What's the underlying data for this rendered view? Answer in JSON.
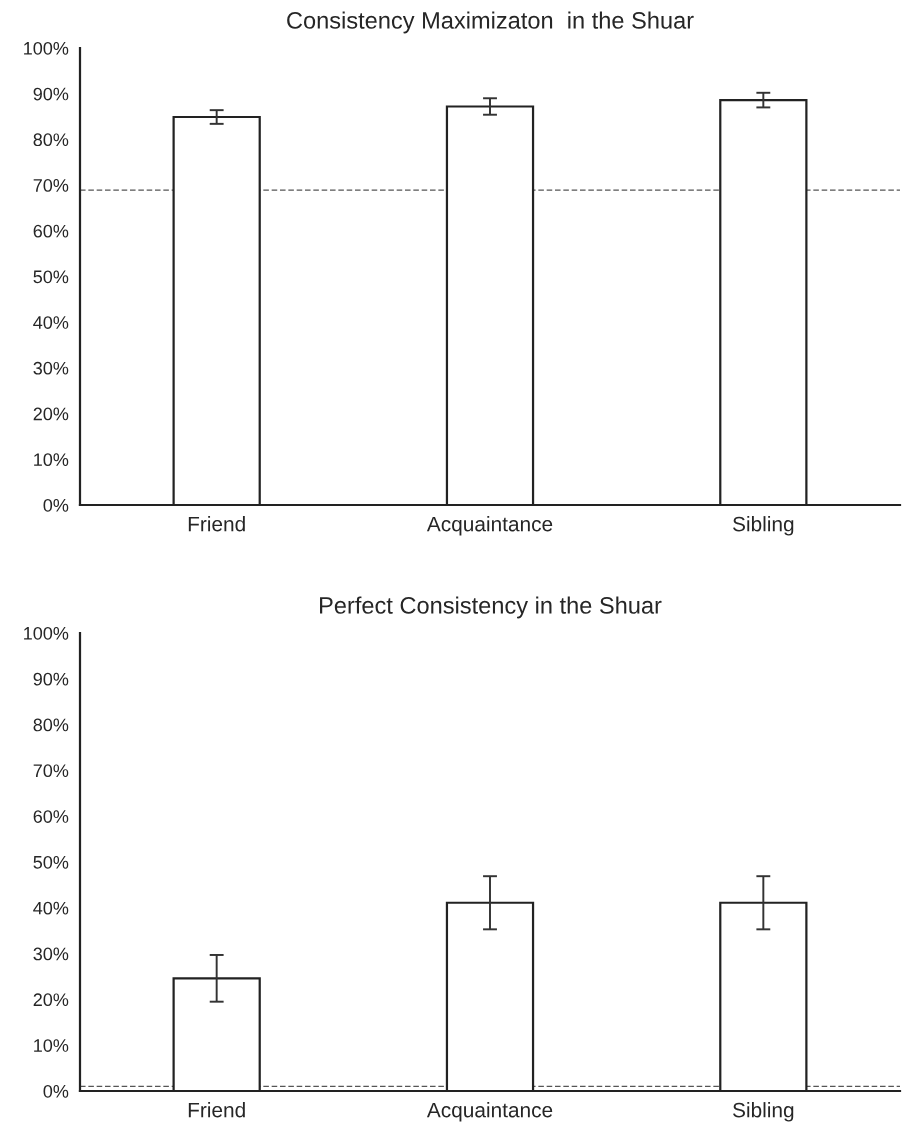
{
  "chart_data": [
    {
      "type": "bar",
      "title": "Consistency Maximizaton  in the Shuar",
      "categories": [
        "Friend",
        "Acquaintance",
        "Sibling"
      ],
      "values": [
        84.9,
        87.2,
        88.6
      ],
      "errors": [
        1.5,
        1.8,
        1.6
      ],
      "color": "#ffffff",
      "ylim": [
        0,
        100
      ],
      "yticks": [
        {
          "value": 0,
          "label": "0%"
        },
        {
          "value": 10,
          "label": "10%"
        },
        {
          "value": 20,
          "label": "20%"
        },
        {
          "value": 30,
          "label": "30%"
        },
        {
          "value": 40,
          "label": "40%"
        },
        {
          "value": 50,
          "label": "50%"
        },
        {
          "value": 60,
          "label": "60%"
        },
        {
          "value": 70,
          "label": "70%"
        },
        {
          "value": 80,
          "label": "80%"
        },
        {
          "value": 90,
          "label": "90%"
        },
        {
          "value": 100,
          "label": "100%"
        }
      ],
      "grid": false,
      "legend": false,
      "ref_lines": [
        {
          "axis": "y",
          "value": 68.9,
          "color": "#555555",
          "line_style": "dashed"
        }
      ]
    },
    {
      "type": "bar",
      "title": "Perfect Consistency in the Shuar",
      "categories": [
        "Friend",
        "Acquaintance",
        "Sibling"
      ],
      "values": [
        24.6,
        41.1,
        41.1
      ],
      "errors": [
        5.1,
        5.8,
        5.8
      ],
      "color": "#ffffff",
      "ylim": [
        0,
        100
      ],
      "yticks": [
        {
          "value": 0,
          "label": "0%"
        },
        {
          "value": 10,
          "label": "10%"
        },
        {
          "value": 20,
          "label": "20%"
        },
        {
          "value": 30,
          "label": "30%"
        },
        {
          "value": 40,
          "label": "40%"
        },
        {
          "value": 50,
          "label": "50%"
        },
        {
          "value": 60,
          "label": "60%"
        },
        {
          "value": 70,
          "label": "70%"
        },
        {
          "value": 80,
          "label": "80%"
        },
        {
          "value": 90,
          "label": "90%"
        },
        {
          "value": 100,
          "label": "100%"
        }
      ],
      "grid": false,
      "legend": false,
      "ref_lines": [
        {
          "axis": "y",
          "value": 1.0,
          "color": "#555555",
          "line_style": "dashed"
        }
      ]
    }
  ]
}
